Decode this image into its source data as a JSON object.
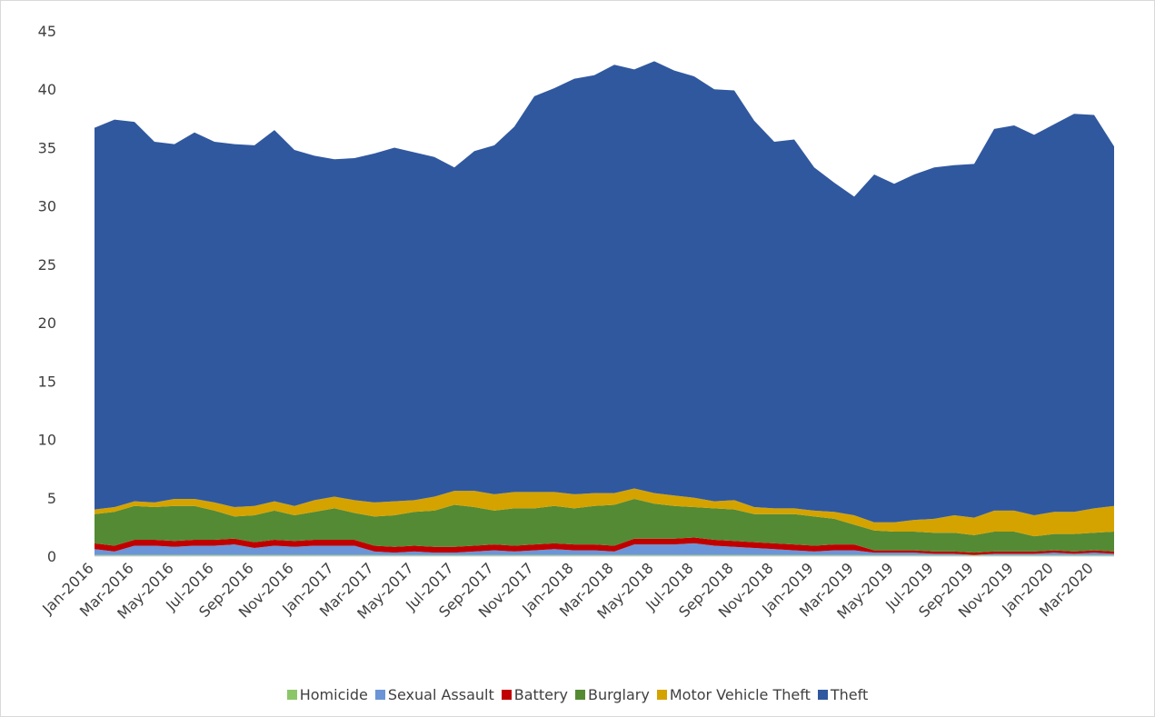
{
  "chart_data": {
    "type": "stacked_area",
    "categories": [
      "Jan-2016",
      null,
      "Mar-2016",
      null,
      "May-2016",
      null,
      "Jul-2016",
      null,
      "Sep-2016",
      null,
      "Nov-2016",
      null,
      "Jan-2017",
      null,
      "Mar-2017",
      null,
      "May-2017",
      null,
      "Jul-2017",
      null,
      "Sep-2017",
      null,
      "Nov-2017",
      null,
      "Jan-2018",
      null,
      "Mar-2018",
      null,
      "May-2018",
      null,
      "Jul-2018",
      null,
      "Sep-2018",
      null,
      "Nov-2018",
      null,
      "Jan-2019",
      null,
      "Mar-2019",
      null,
      "May-2019",
      null,
      "Jul-2019",
      null,
      "Sep-2019",
      null,
      "Nov-2019",
      null,
      "Jan-2020",
      null,
      "Mar-2020",
      null
    ],
    "series": [
      {
        "name": "Homicide",
        "color": "#8cc66a",
        "values": [
          0.1,
          0.1,
          0.1,
          0.1,
          0.1,
          0.1,
          0.1,
          0.1,
          0.1,
          0.1,
          0.1,
          0.1,
          0.1,
          0.1,
          0.1,
          0.1,
          0.1,
          0.1,
          0.1,
          0.1,
          0.1,
          0.1,
          0.1,
          0.1,
          0.1,
          0.1,
          0.1,
          0.1,
          0.1,
          0.1,
          0.1,
          0.1,
          0.1,
          0.1,
          0.1,
          0.1,
          0.1,
          0.1,
          0.1,
          0.1,
          0.1,
          0.1,
          0.1,
          0.1,
          0.1,
          0.1,
          0.1,
          0.1,
          0.1,
          0.1,
          0.1,
          0.1
        ]
      },
      {
        "name": "Sexual Assault",
        "color": "#6b95d6",
        "values": [
          0.5,
          0.3,
          0.8,
          0.8,
          0.7,
          0.8,
          0.8,
          0.9,
          0.6,
          0.8,
          0.7,
          0.8,
          0.8,
          0.8,
          0.3,
          0.2,
          0.3,
          0.2,
          0.2,
          0.3,
          0.4,
          0.3,
          0.4,
          0.5,
          0.4,
          0.4,
          0.3,
          0.9,
          0.9,
          0.9,
          1.0,
          0.8,
          0.7,
          0.6,
          0.5,
          0.4,
          0.3,
          0.4,
          0.4,
          0.2,
          0.2,
          0.2,
          0.1,
          0.1,
          0.0,
          0.1,
          0.1,
          0.1,
          0.2,
          0.1,
          0.2,
          0.1
        ]
      },
      {
        "name": "Battery",
        "color": "#c00000",
        "values": [
          0.5,
          0.5,
          0.5,
          0.5,
          0.5,
          0.5,
          0.5,
          0.5,
          0.5,
          0.5,
          0.5,
          0.5,
          0.5,
          0.5,
          0.5,
          0.5,
          0.5,
          0.5,
          0.5,
          0.5,
          0.5,
          0.5,
          0.5,
          0.5,
          0.5,
          0.5,
          0.5,
          0.5,
          0.5,
          0.5,
          0.5,
          0.5,
          0.5,
          0.5,
          0.5,
          0.5,
          0.5,
          0.5,
          0.5,
          0.2,
          0.2,
          0.2,
          0.2,
          0.2,
          0.2,
          0.2,
          0.2,
          0.2,
          0.2,
          0.2,
          0.2,
          0.2
        ]
      },
      {
        "name": "Burglary",
        "color": "#548a34",
        "values": [
          2.5,
          2.9,
          2.9,
          2.8,
          3.0,
          2.9,
          2.5,
          1.9,
          2.3,
          2.5,
          2.2,
          2.4,
          2.7,
          2.3,
          2.5,
          2.7,
          2.9,
          3.1,
          3.6,
          3.3,
          2.9,
          3.2,
          3.1,
          3.2,
          3.1,
          3.3,
          3.5,
          3.4,
          3.0,
          2.8,
          2.6,
          2.7,
          2.7,
          2.4,
          2.5,
          2.6,
          2.5,
          2.2,
          1.7,
          1.7,
          1.6,
          1.6,
          1.6,
          1.6,
          1.5,
          1.7,
          1.7,
          1.3,
          1.4,
          1.5,
          1.5,
          1.7
        ]
      },
      {
        "name": "Motor Vehicle Theft",
        "color": "#d4a300",
        "values": [
          0.4,
          0.4,
          0.4,
          0.4,
          0.6,
          0.6,
          0.7,
          0.8,
          0.8,
          0.8,
          0.8,
          1.0,
          1.0,
          1.1,
          1.2,
          1.2,
          1.0,
          1.2,
          1.2,
          1.4,
          1.4,
          1.4,
          1.4,
          1.2,
          1.2,
          1.1,
          1.0,
          0.9,
          0.9,
          0.9,
          0.8,
          0.6,
          0.8,
          0.6,
          0.5,
          0.5,
          0.5,
          0.6,
          0.8,
          0.7,
          0.8,
          1.0,
          1.2,
          1.5,
          1.5,
          1.8,
          1.8,
          1.8,
          1.9,
          1.9,
          2.1,
          2.2
        ]
      },
      {
        "name": "Theft",
        "color": "#30589f",
        "values": [
          32.7,
          33.2,
          32.5,
          30.9,
          30.4,
          31.4,
          30.9,
          31.1,
          30.9,
          31.8,
          30.5,
          29.5,
          28.9,
          29.3,
          29.9,
          30.3,
          29.8,
          29.1,
          27.7,
          29.1,
          29.9,
          31.3,
          33.9,
          34.6,
          35.6,
          35.8,
          36.7,
          35.9,
          37.0,
          36.4,
          36.1,
          35.3,
          35.1,
          33.1,
          31.4,
          31.6,
          29.4,
          28.2,
          27.3,
          29.8,
          29.0,
          29.6,
          30.1,
          30.0,
          30.3,
          32.7,
          33.0,
          32.6,
          33.2,
          34.1,
          33.7,
          30.8
        ]
      }
    ],
    "ylim": [
      0,
      45
    ],
    "yticks": [
      0,
      5,
      10,
      15,
      20,
      25,
      30,
      35,
      40,
      45
    ],
    "grid": false,
    "legend": "bottom"
  }
}
